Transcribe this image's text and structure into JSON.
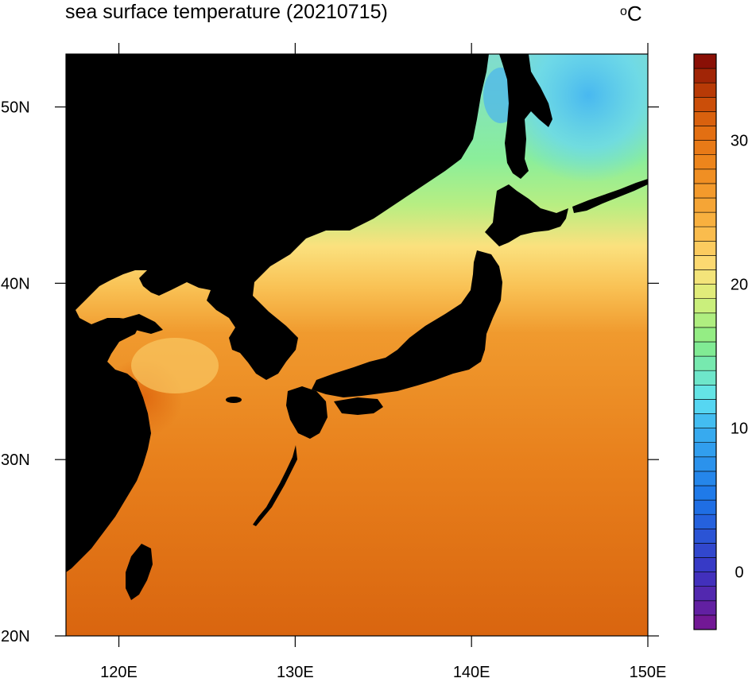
{
  "title": "sea surface temperature (20210715)",
  "unit": {
    "symbol": "o",
    "letter": "C"
  },
  "map": {
    "lon_range": [
      117,
      150
    ],
    "lat_range": [
      20,
      53
    ],
    "x_ticks": [
      {
        "value": 120,
        "label": "120E"
      },
      {
        "value": 130,
        "label": "130E"
      },
      {
        "value": 140,
        "label": "140E"
      },
      {
        "value": 150,
        "label": "150E"
      }
    ],
    "y_ticks": [
      {
        "value": 20,
        "label": "20N"
      },
      {
        "value": 30,
        "label": "30N"
      },
      {
        "value": 40,
        "label": "40N"
      },
      {
        "value": 50,
        "label": "50N"
      }
    ],
    "land_color": "#000000"
  },
  "colorbar": {
    "min": -4,
    "max": 36,
    "interval": 1,
    "tick_values": [
      0,
      10,
      20,
      30
    ],
    "tick_labels": [
      "0",
      "10",
      "20",
      "30"
    ],
    "color_stops": [
      {
        "v": -4,
        "c": "#7a148f"
      },
      {
        "v": 0,
        "c": "#3a34c2"
      },
      {
        "v": 5,
        "c": "#1c74e8"
      },
      {
        "v": 10,
        "c": "#3ab0f0"
      },
      {
        "v": 12,
        "c": "#5fe3f2"
      },
      {
        "v": 16,
        "c": "#86ec86"
      },
      {
        "v": 19,
        "c": "#d8f07a"
      },
      {
        "v": 21,
        "c": "#fce07a"
      },
      {
        "v": 24,
        "c": "#f9b544"
      },
      {
        "v": 28,
        "c": "#ef8a1e"
      },
      {
        "v": 31,
        "c": "#e06a10"
      },
      {
        "v": 33,
        "c": "#c44406"
      },
      {
        "v": 36,
        "c": "#7e0606"
      }
    ]
  }
}
